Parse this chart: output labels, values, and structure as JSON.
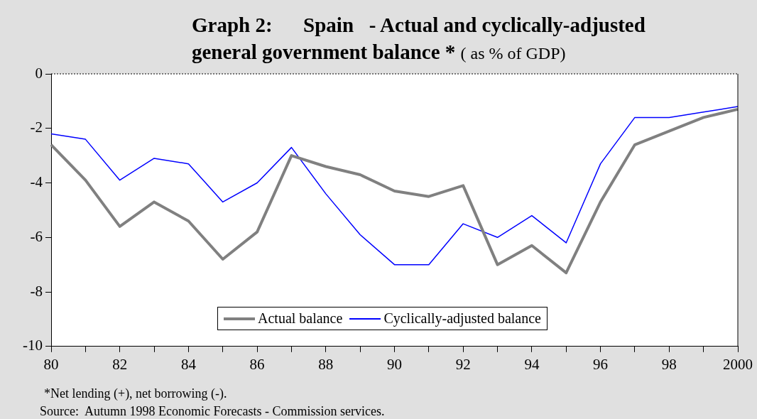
{
  "chart_data": {
    "type": "line",
    "title": "Graph 2:      Spain   - Actual and cyclically-adjusted general government balance *",
    "subtitle": "( as % of GDP)",
    "categories": [
      "80",
      null,
      "82",
      null,
      "84",
      null,
      "86",
      null,
      "88",
      null,
      "90",
      null,
      "92",
      null,
      "94",
      null,
      "96",
      null,
      "98",
      null,
      "2000"
    ],
    "series": [
      {
        "name": "Actual balance",
        "color": "#808080",
        "values": [
          -2.6,
          -3.9,
          -5.6,
          -4.7,
          -5.4,
          -6.8,
          -5.8,
          -3.0,
          -3.4,
          -3.7,
          -4.3,
          -4.5,
          -4.1,
          -7.0,
          -6.3,
          -7.3,
          -4.7,
          -2.6,
          -2.1,
          -1.6,
          -1.3
        ]
      },
      {
        "name": "Cyclically-adjusted balance",
        "color": "#0000ff",
        "values": [
          -2.2,
          -2.4,
          -3.9,
          -3.1,
          -3.3,
          -4.7,
          -4.0,
          -2.7,
          -4.4,
          -5.9,
          -7.0,
          -7.0,
          -5.5,
          -6.0,
          -5.2,
          -6.2,
          -3.3,
          -1.6,
          -1.6,
          -1.4,
          -1.2
        ]
      }
    ],
    "ylim": [
      -10,
      0
    ],
    "yticks": [
      -10,
      -8,
      -6,
      -4,
      -2,
      0
    ],
    "grid": false,
    "legend": "bottom",
    "marker": "none",
    "line_style": "solid",
    "annotations": [
      "*Net lending (+), net borrowing (-).",
      "Source:  Autumn 1998 Economic Forecasts - Commission services."
    ]
  }
}
